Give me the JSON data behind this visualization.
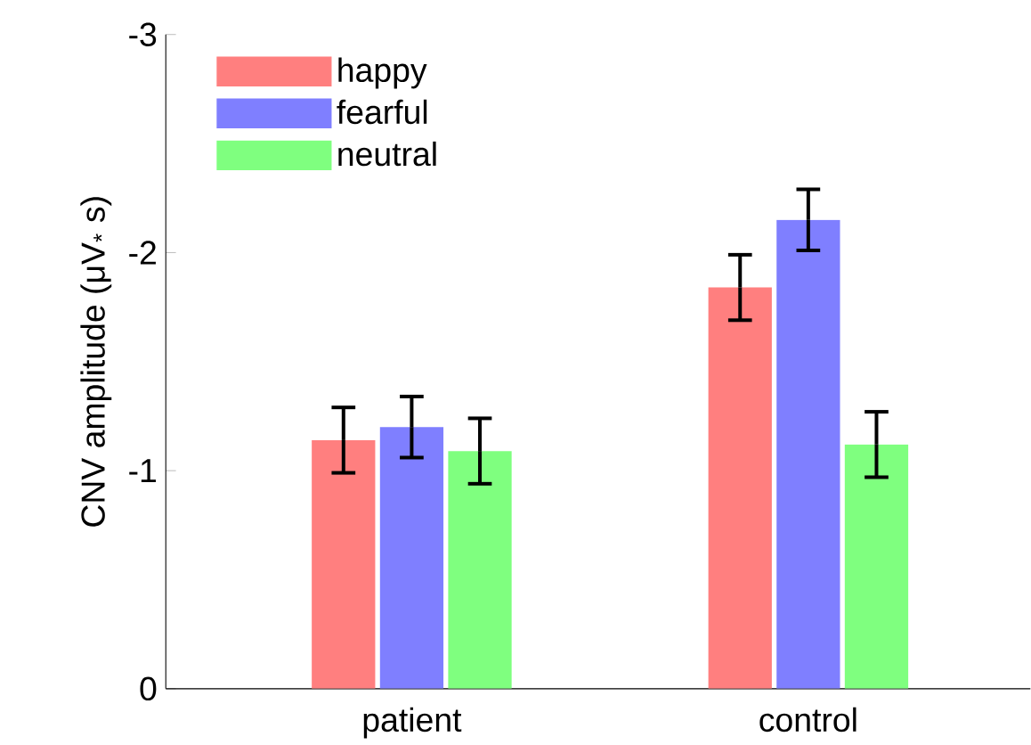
{
  "chart_data": {
    "type": "bar",
    "ylabel": "CNV amplitude (μV$_{*}$ s)",
    "categories": [
      "patient",
      "control"
    ],
    "series": [
      {
        "name": "happy",
        "color": "#ff7f7f",
        "values": [
          -1.14,
          -1.84
        ],
        "errors": [
          0.15,
          0.15
        ]
      },
      {
        "name": "fearful",
        "color": "#7f7fff",
        "values": [
          -1.2,
          -2.15
        ],
        "errors": [
          0.14,
          0.14
        ]
      },
      {
        "name": "neutral",
        "color": "#7fff7f",
        "values": [
          -1.09,
          -1.12
        ],
        "errors": [
          0.15,
          0.15
        ]
      }
    ],
    "ylim": [
      0,
      -3
    ],
    "yticks": [
      0,
      -1,
      -2,
      -3
    ],
    "legend": "top left",
    "grid": false
  }
}
